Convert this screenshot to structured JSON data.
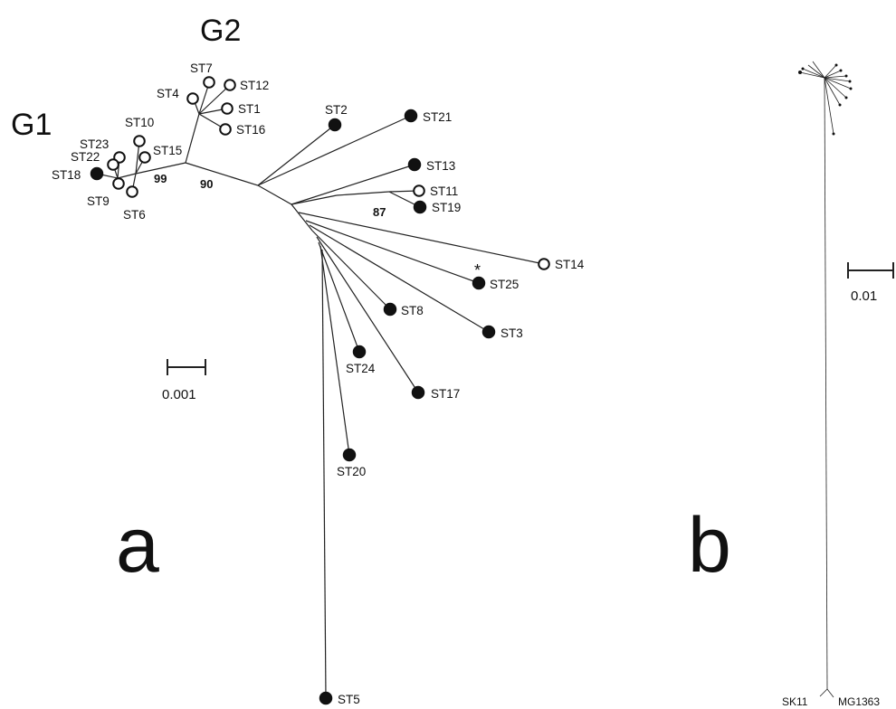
{
  "panel_a": {
    "label": "a",
    "groups": {
      "g1": "G1",
      "g2": "G2"
    },
    "bootstrap": {
      "b99": "99",
      "b90": "90",
      "b87": "87"
    },
    "asterisk": "*",
    "scale_label": "0.001",
    "taxa": {
      "st1": "ST1",
      "st2": "ST2",
      "st3": "ST3",
      "st4": "ST4",
      "st5": "ST5",
      "st6": "ST6",
      "st7": "ST7",
      "st8": "ST8",
      "st9": "ST9",
      "st10": "ST10",
      "st11": "ST11",
      "st12": "ST12",
      "st13": "ST13",
      "st14": "ST14",
      "st15": "ST15",
      "st16": "ST16",
      "st17": "ST17",
      "st18": "ST18",
      "st19": "ST19",
      "st20": "ST20",
      "st21": "ST21",
      "st22": "ST22",
      "st23": "ST23",
      "st24": "ST24",
      "st25": "ST25"
    }
  },
  "panel_b": {
    "label": "b",
    "scale_label": "0.01",
    "outgroup_left": "SK11",
    "outgroup_right": "MG1363"
  }
}
